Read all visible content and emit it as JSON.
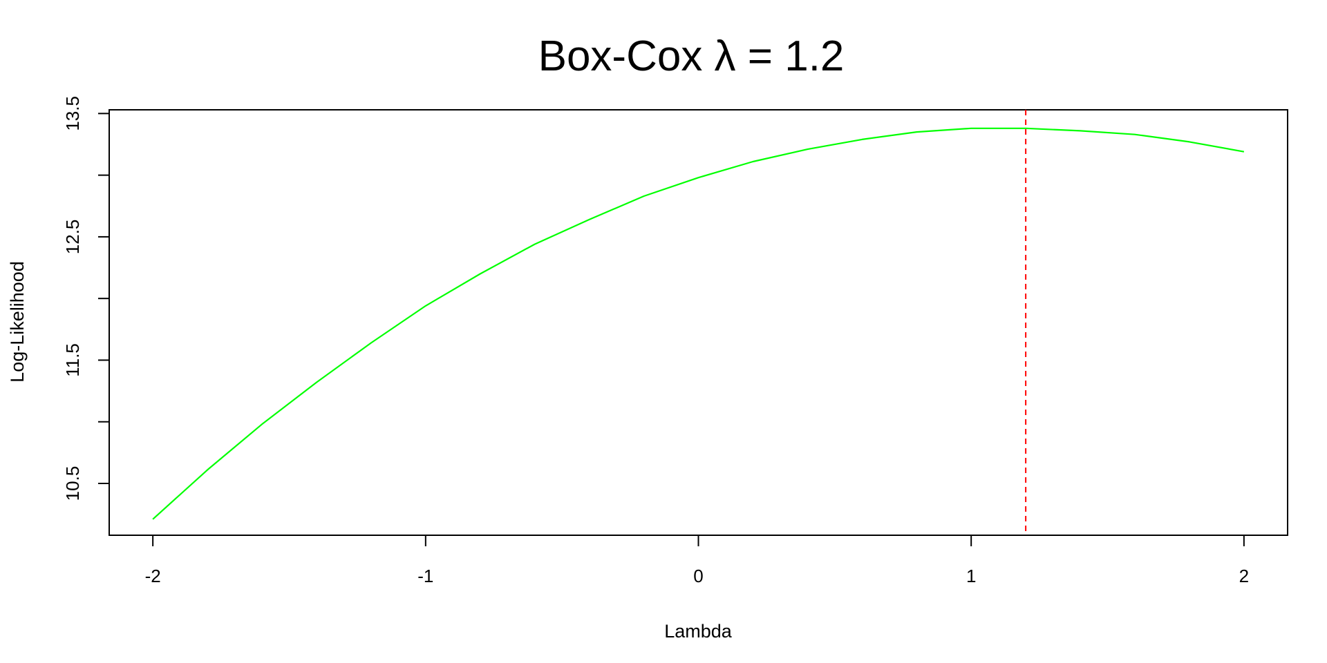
{
  "chart_data": {
    "type": "line",
    "title": "Box-Cox λ = 1.2",
    "xlabel": "Lambda",
    "ylabel": "Log-Likelihood",
    "xlim": [
      -2.16,
      2.16
    ],
    "ylim": [
      10.08,
      13.53
    ],
    "x_ticks": [
      -2,
      -1,
      0,
      1,
      2
    ],
    "x_tick_labels": [
      "-2",
      "-1",
      "0",
      "1",
      "2"
    ],
    "y_ticks": [
      10.5,
      11,
      11.5,
      12,
      12.5,
      13,
      13.5
    ],
    "y_tick_labels": [
      "10.5",
      "",
      "11.5",
      "",
      "12.5",
      "",
      "13.5"
    ],
    "grid": false,
    "series": [
      {
        "color": "#00ff00",
        "x": [
          -2.0,
          -1.8,
          -1.6,
          -1.4,
          -1.2,
          -1.0,
          -0.8,
          -0.6,
          -0.4,
          -0.2,
          0.0,
          0.2,
          0.4,
          0.6,
          0.8,
          1.0,
          1.2,
          1.4,
          1.6,
          1.8,
          2.0
        ],
        "y": [
          10.21,
          10.61,
          10.98,
          11.32,
          11.64,
          11.94,
          12.2,
          12.44,
          12.64,
          12.83,
          12.98,
          13.11,
          13.21,
          13.29,
          13.35,
          13.38,
          13.38,
          13.36,
          13.33,
          13.27,
          13.19
        ]
      }
    ],
    "reference_line": {
      "x": 1.2,
      "color": "#ff0000",
      "style": "dashed"
    }
  }
}
